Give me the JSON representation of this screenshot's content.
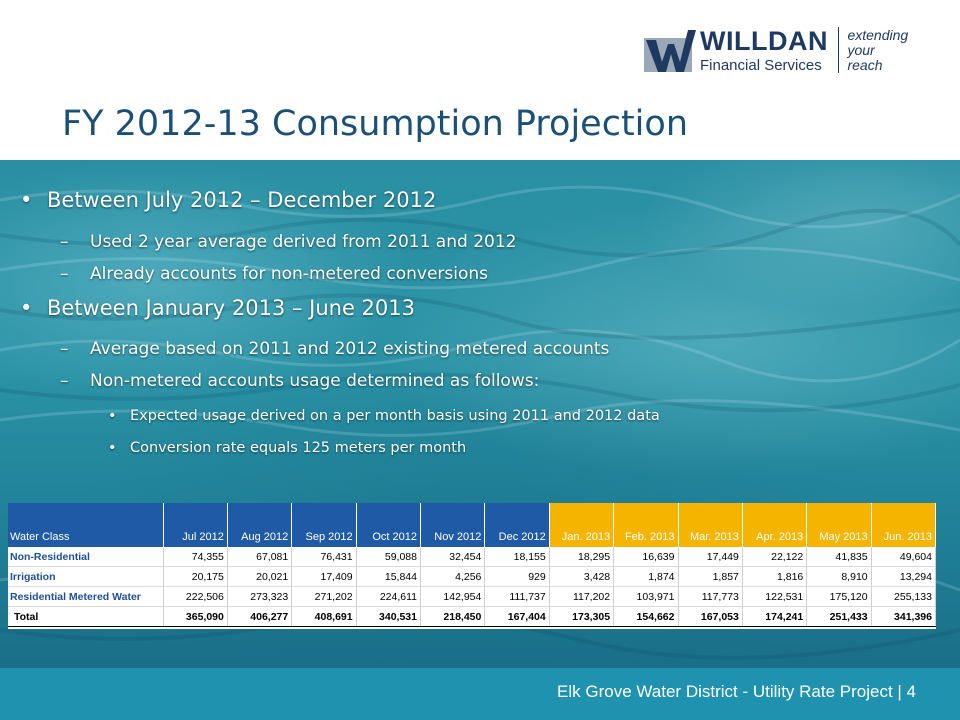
{
  "slide": {
    "title": "FY 2012-13 Consumption Projection",
    "logo": {
      "name": "WILLDAN",
      "subtitle": "Financial Services",
      "tagline": [
        "extending",
        "your",
        "reach"
      ]
    },
    "bullets": [
      {
        "level": 1,
        "text": "Between July 2012 – December 2012"
      },
      {
        "level": 2,
        "text": "Used 2 year average derived from 2011 and 2012"
      },
      {
        "level": 2,
        "text": "Already accounts for non-metered conversions"
      },
      {
        "level": 1,
        "text": "Between January 2013 – June 2013"
      },
      {
        "level": 2,
        "text": "Average based on 2011 and 2012 existing metered accounts"
      },
      {
        "level": 2,
        "text": "Non-metered accounts usage determined as follows:"
      },
      {
        "level": 3,
        "text": "Expected usage derived on a per month basis using 2011 and 2012 data"
      },
      {
        "level": 3,
        "text": "Conversion rate equals 125 meters per month"
      }
    ],
    "bullet_glyphs": {
      "level1": "•",
      "level2": "–",
      "level3": "•"
    },
    "footer": "Elk Grove Water District - Utility Rate Project | 4",
    "colors": {
      "title": "#1a4f7a",
      "footer_bar": "#1f92b0",
      "header_actual": "#1f5aa6",
      "header_projected": "#f5b400",
      "row_label": "#1f4e9a"
    }
  },
  "table": {
    "corner": "Water Class",
    "columns": [
      "Jul 2012",
      "Aug 2012",
      "Sep 2012",
      "Oct 2012",
      "Nov 2012",
      "Dec 2012",
      "Jan. 2013",
      "Feb. 2013",
      "Mar. 2013",
      "Apr. 2013",
      "May 2013",
      "Jun. 2013"
    ],
    "rows": [
      {
        "label": "Non-Residential",
        "values": [
          "74,355",
          "67,081",
          "76,431",
          "59,088",
          "32,454",
          "18,155",
          "18,295",
          "16,639",
          "17,449",
          "22,122",
          "41,835",
          "49,604"
        ]
      },
      {
        "label": "Irrigation",
        "values": [
          "20,175",
          "20,021",
          "17,409",
          "15,844",
          "4,256",
          "929",
          "3,428",
          "1,874",
          "1,857",
          "1,816",
          "8,910",
          "13,294"
        ]
      },
      {
        "label": "Residential Metered Water",
        "values": [
          "222,506",
          "273,323",
          "271,202",
          "224,611",
          "142,954",
          "111,737",
          "117,202",
          "103,971",
          "117,773",
          "122,531",
          "175,120",
          "255,133"
        ]
      }
    ],
    "total": {
      "label": "Total",
      "values": [
        "365,090",
        "406,277",
        "408,691",
        "340,531",
        "218,450",
        "167,404",
        "173,305",
        "154,662",
        "167,053",
        "174,241",
        "251,433",
        "341,396"
      ]
    }
  }
}
